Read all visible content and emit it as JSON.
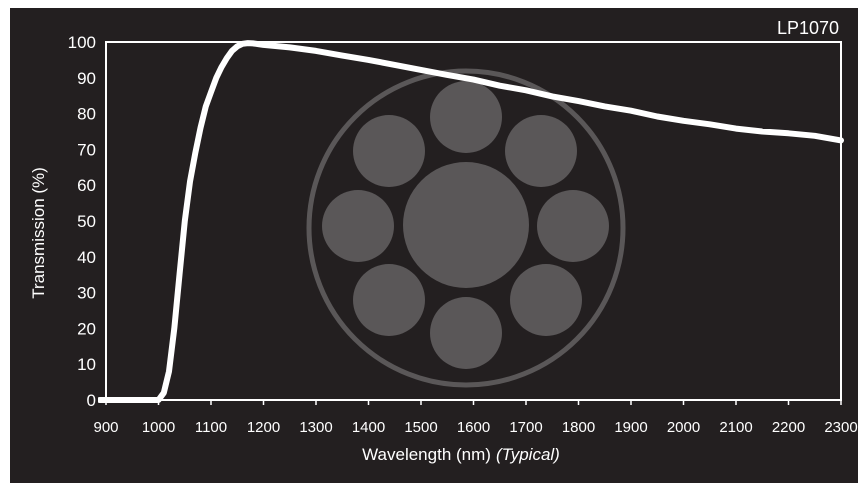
{
  "chart_data": {
    "type": "line",
    "title": "LP1070",
    "xlabel": "Wavelength (nm)",
    "xlabel_note": "(Typical)",
    "ylabel": "Transmission (%)",
    "xlim": [
      900,
      2300
    ],
    "ylim": [
      0,
      100
    ],
    "x_ticks": [
      900,
      1000,
      1100,
      1200,
      1300,
      1400,
      1500,
      1600,
      1700,
      1800,
      1900,
      2000,
      2100,
      2200,
      2300
    ],
    "y_ticks": [
      0,
      10,
      20,
      30,
      40,
      50,
      60,
      70,
      80,
      90,
      100
    ],
    "grid": false,
    "series": [
      {
        "x": [
          888,
          1000,
          1010,
          1020,
          1030,
          1040,
          1050,
          1060,
          1070,
          1080,
          1090,
          1100,
          1110,
          1120,
          1130,
          1140,
          1150,
          1160,
          1170,
          1180,
          1190,
          1200,
          1250,
          1300,
          1350,
          1400,
          1450,
          1500,
          1550,
          1600,
          1650,
          1700,
          1750,
          1800,
          1850,
          1900,
          1950,
          2000,
          2050,
          2100,
          2150,
          2200,
          2250,
          2300
        ],
        "y": [
          0,
          0,
          2,
          8,
          20,
          35,
          50,
          61,
          69,
          76,
          82,
          86,
          90,
          93,
          95.5,
          97.5,
          98.8,
          99.5,
          99.7,
          99.6,
          99.4,
          99.2,
          98.5,
          97.5,
          96.2,
          95,
          93.6,
          92.2,
          90.8,
          89.5,
          87.8,
          86.5,
          84.8,
          83.5,
          82,
          80.8,
          79.2,
          78,
          77,
          75.8,
          75,
          74.5,
          73.8,
          72.5
        ]
      }
    ]
  },
  "watermark": {
    "color": "#5a5758"
  },
  "colors": {
    "background": "#231f20",
    "line": "#ffffff",
    "axis": "#ffffff"
  }
}
